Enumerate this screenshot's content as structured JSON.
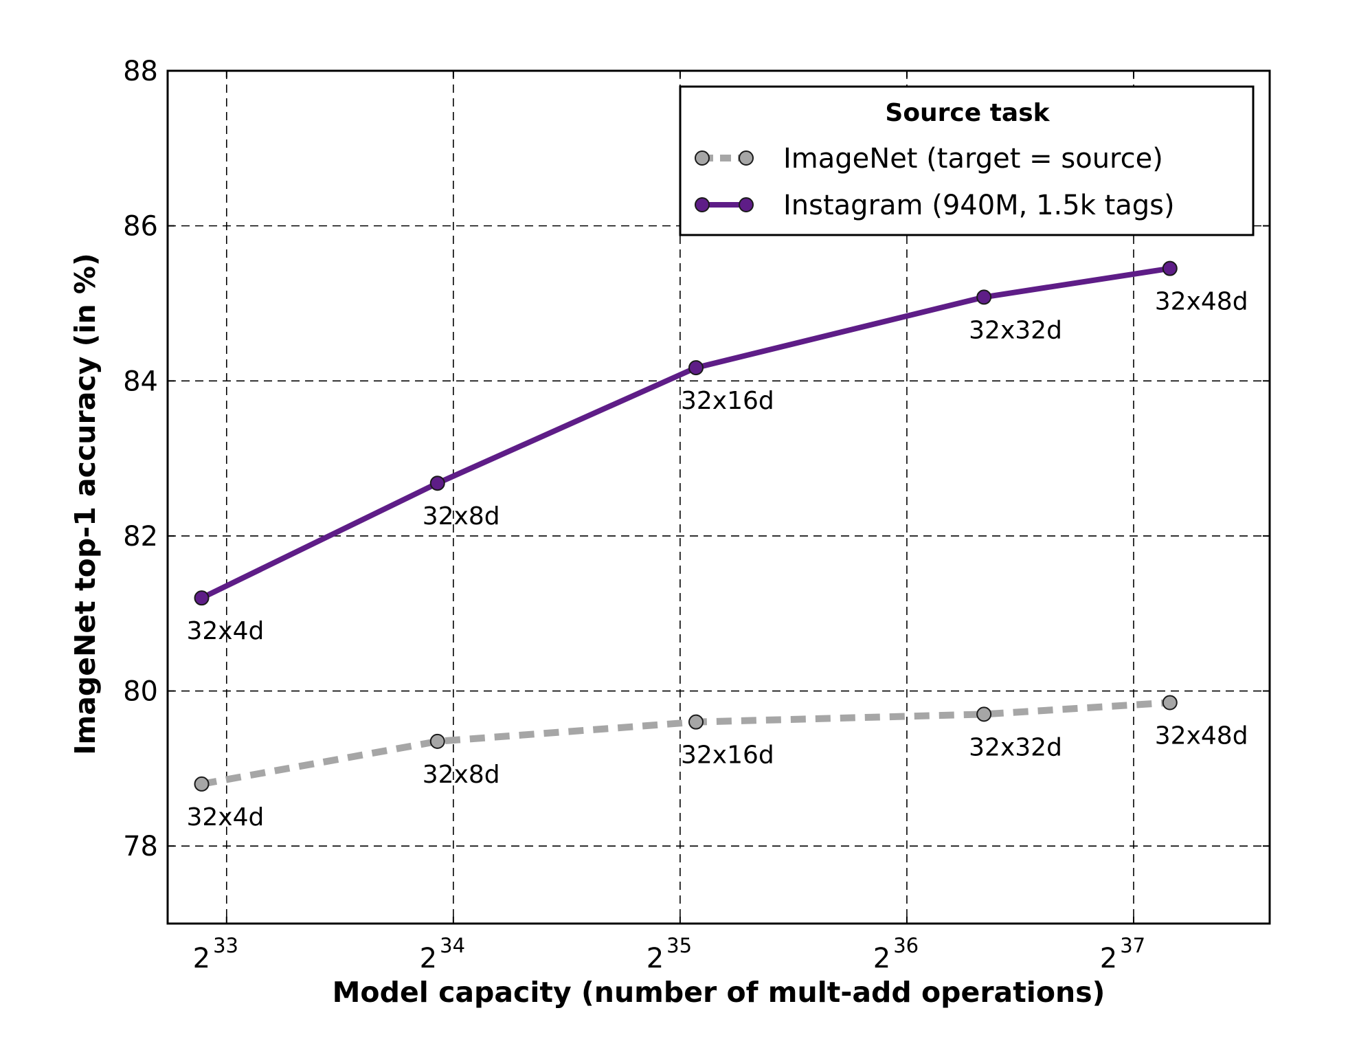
{
  "chart_data": {
    "type": "line",
    "title": "",
    "xlabel": "Model capacity (number of mult-add operations)",
    "ylabel": "ImageNet top-1 accuracy (in %)",
    "x_scale": "log2",
    "xlim_log2": [
      32.74,
      37.6
    ],
    "ylim": [
      77,
      88
    ],
    "x_ticks": [
      {
        "base": "2",
        "exp": "33",
        "log2": 33
      },
      {
        "base": "2",
        "exp": "34",
        "log2": 34
      },
      {
        "base": "2",
        "exp": "35",
        "log2": 35
      },
      {
        "base": "2",
        "exp": "36",
        "log2": 36
      },
      {
        "base": "2",
        "exp": "37",
        "log2": 37
      }
    ],
    "y_ticks": [
      78,
      80,
      82,
      84,
      86,
      88
    ],
    "grid": true,
    "legend": {
      "title": "Source task",
      "placement": "top-right"
    },
    "series": [
      {
        "name": "ImageNet (target = source)",
        "color": "#a6a6a6",
        "line_style": "dashed",
        "points": [
          {
            "label": "32x4d",
            "x_log2": 32.89,
            "y": 78.8
          },
          {
            "label": "32x8d",
            "x_log2": 33.93,
            "y": 79.35
          },
          {
            "label": "32x16d",
            "x_log2": 35.07,
            "y": 79.6
          },
          {
            "label": "32x32d",
            "x_log2": 36.34,
            "y": 79.7
          },
          {
            "label": "32x48d",
            "x_log2": 37.16,
            "y": 79.85
          }
        ]
      },
      {
        "name": "Instagram (940M, 1.5k tags)",
        "color": "#5e1d87",
        "line_style": "solid",
        "points": [
          {
            "label": "32x4d",
            "x_log2": 32.89,
            "y": 81.2
          },
          {
            "label": "32x8d",
            "x_log2": 33.93,
            "y": 82.68
          },
          {
            "label": "32x16d",
            "x_log2": 35.07,
            "y": 84.17
          },
          {
            "label": "32x32d",
            "x_log2": 36.34,
            "y": 85.08
          },
          {
            "label": "32x48d",
            "x_log2": 37.16,
            "y": 85.45
          }
        ]
      }
    ]
  }
}
